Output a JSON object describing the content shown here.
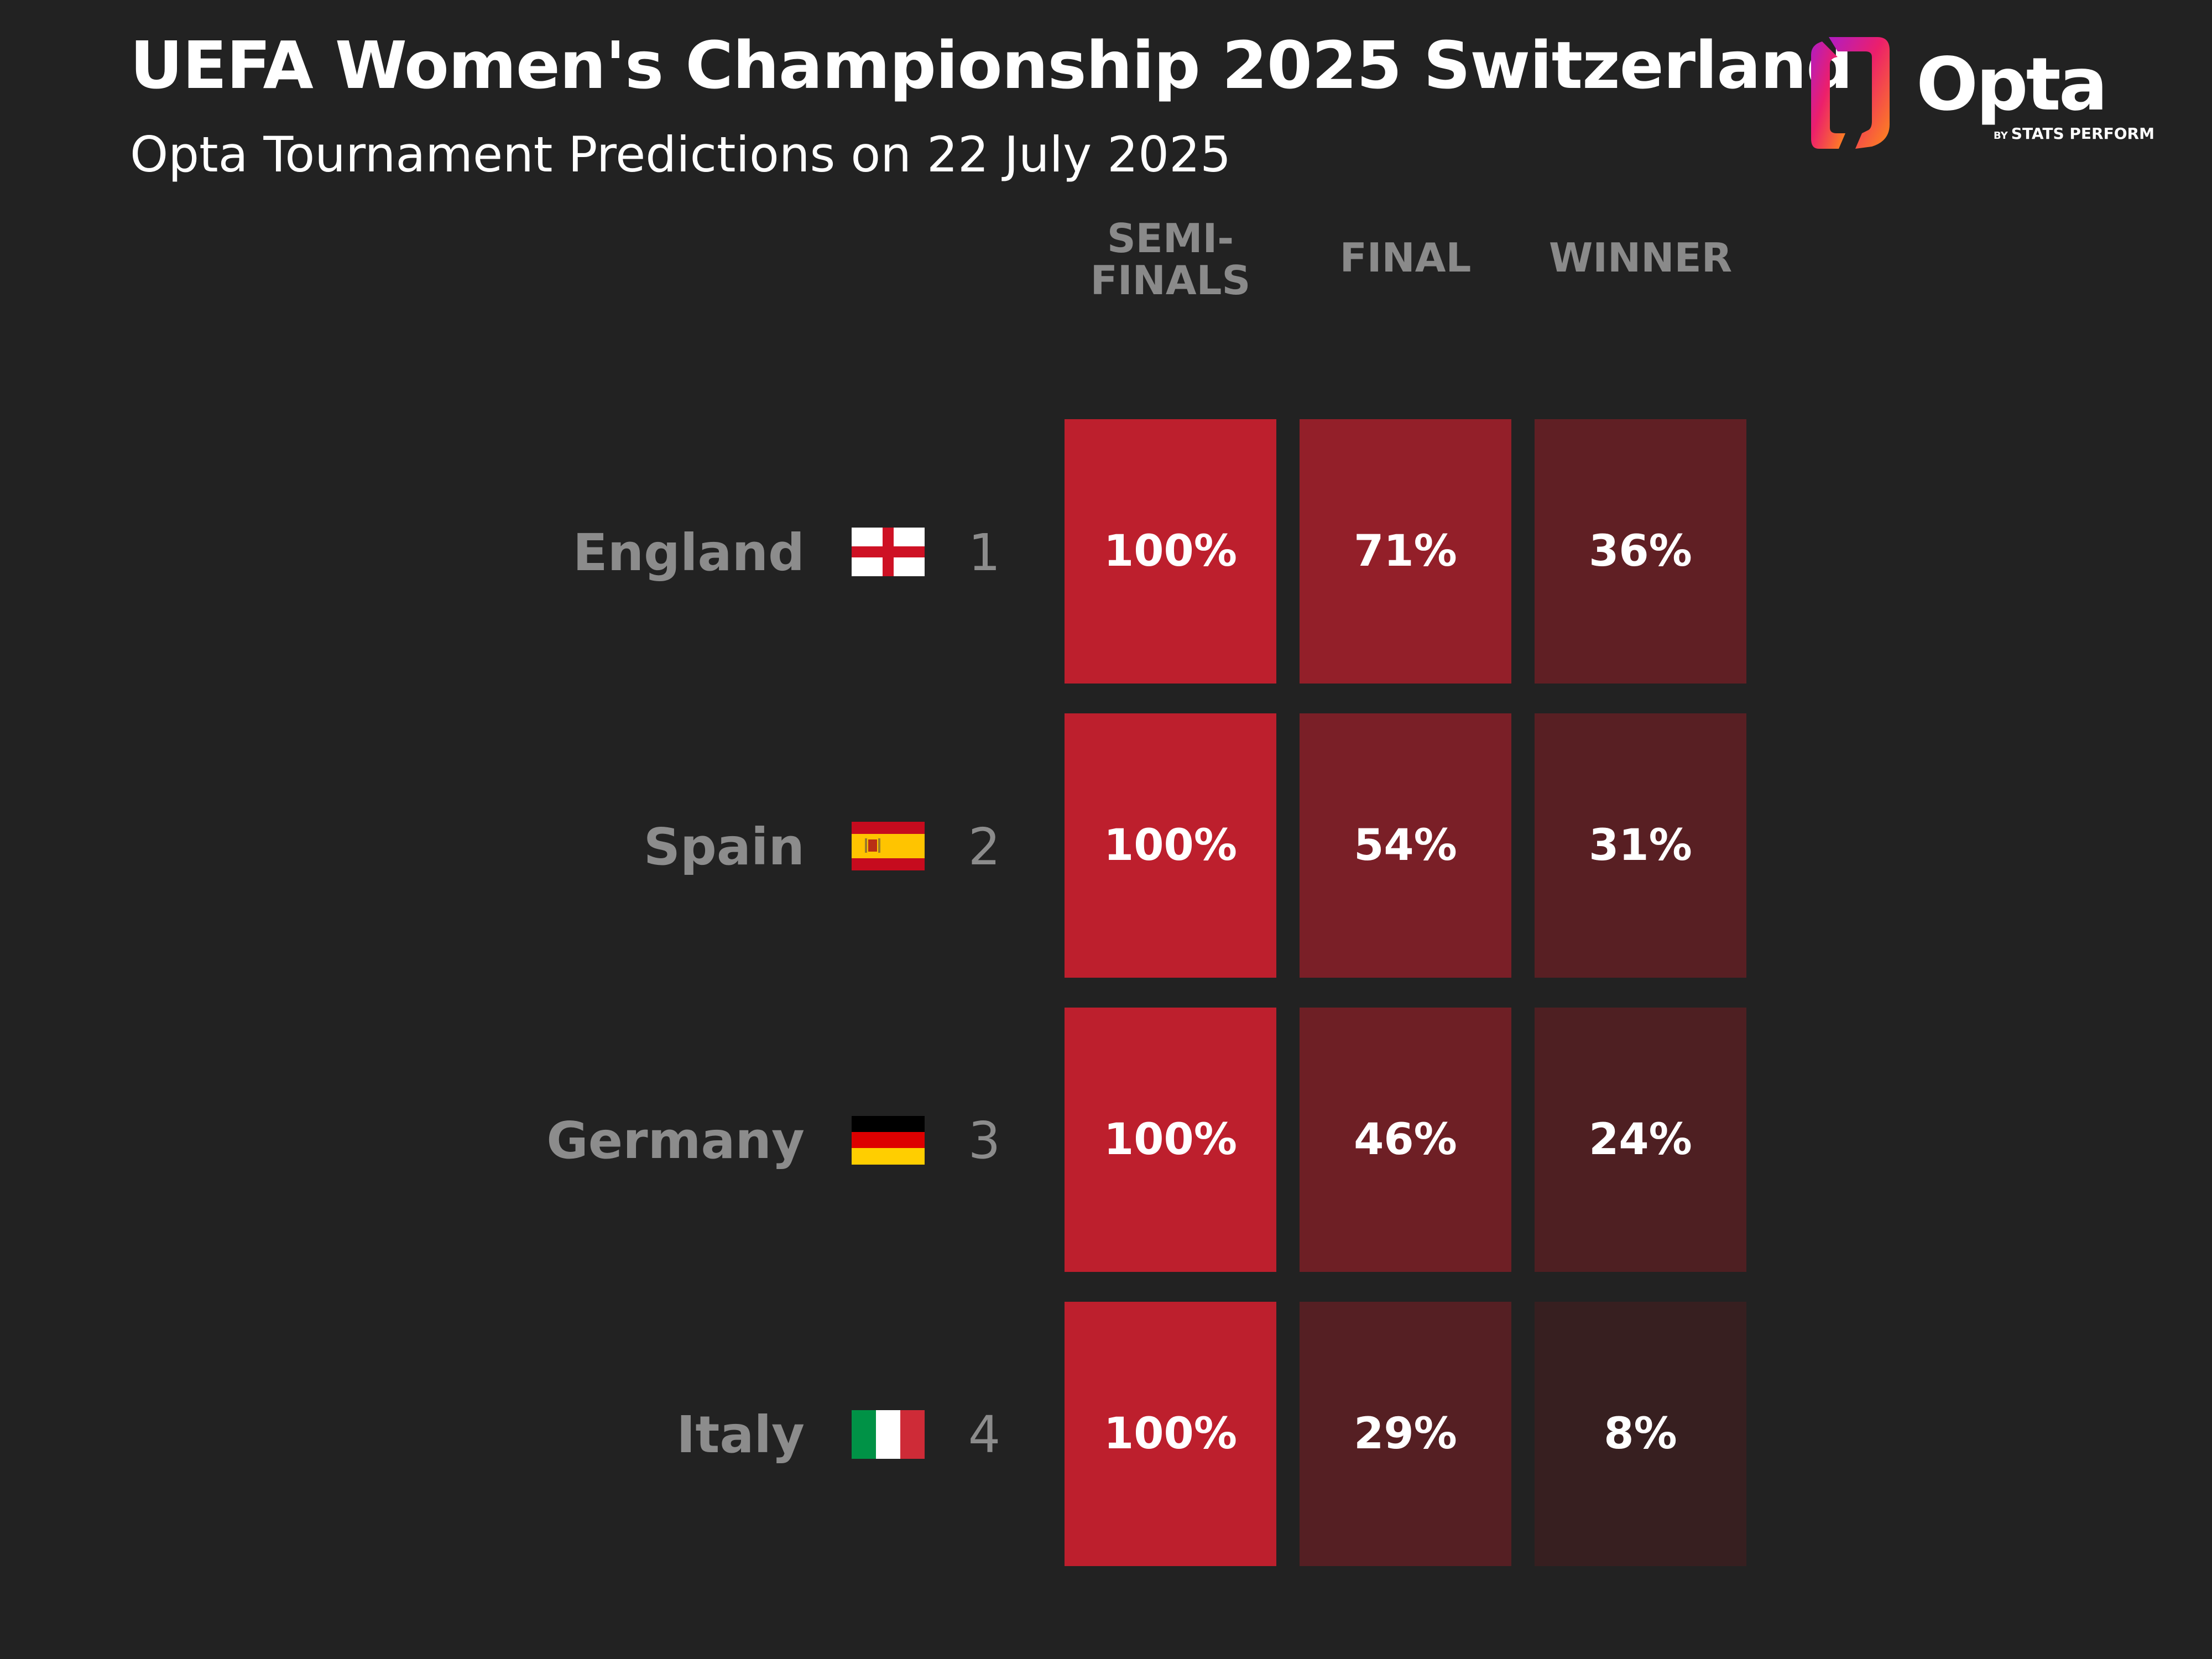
{
  "header": {
    "title": "UEFA Women's Championship 2025 Switzerland",
    "subtitle": "Opta Tournament Predictions on 22 July 2025"
  },
  "logo": {
    "name": "Opta",
    "tagline_by": "BY",
    "tagline": "STATS PERFORM",
    "icon": "opta-logo-icon"
  },
  "colors": {
    "background": "#222222",
    "heat_min": "#2b1f1f",
    "heat_max": "#bd1f2d",
    "label_gray": "#8c8c8c",
    "flag_england_red": "#ce1124",
    "flag_spain_red": "#c60b1e",
    "flag_spain_yellow": "#ffc400",
    "flag_germany_red": "#dd0000",
    "flag_germany_gold": "#ffce00",
    "flag_italy_green": "#009246",
    "flag_italy_red": "#ce2b37"
  },
  "chart_data": {
    "type": "heatmap",
    "title": "UEFA Women's Championship 2025 Switzerland",
    "subtitle": "Opta Tournament Predictions on 22 July 2025",
    "columns": [
      "SEMI-FINALS",
      "FINAL",
      "WINNER"
    ],
    "column_labels": [
      [
        "SEMI-",
        "FINALS"
      ],
      [
        "FINAL"
      ],
      [
        "WINNER"
      ]
    ],
    "rows": [
      {
        "team": "England",
        "seed": "1",
        "flag": "england-flag-icon",
        "values": [
          100,
          71,
          36
        ],
        "labels": [
          "100%",
          "71%",
          "36%"
        ]
      },
      {
        "team": "Spain",
        "seed": "2",
        "flag": "spain-flag-icon",
        "values": [
          100,
          54,
          31
        ],
        "labels": [
          "100%",
          "54%",
          "31%"
        ]
      },
      {
        "team": "Germany",
        "seed": "3",
        "flag": "germany-flag-icon",
        "values": [
          100,
          46,
          24
        ],
        "labels": [
          "100%",
          "46%",
          "24%"
        ]
      },
      {
        "team": "Italy",
        "seed": "4",
        "flag": "italy-flag-icon",
        "values": [
          100,
          29,
          8
        ],
        "labels": [
          "100%",
          "29%",
          "8%"
        ]
      }
    ],
    "value_range": [
      0,
      100
    ],
    "unit": "%"
  }
}
